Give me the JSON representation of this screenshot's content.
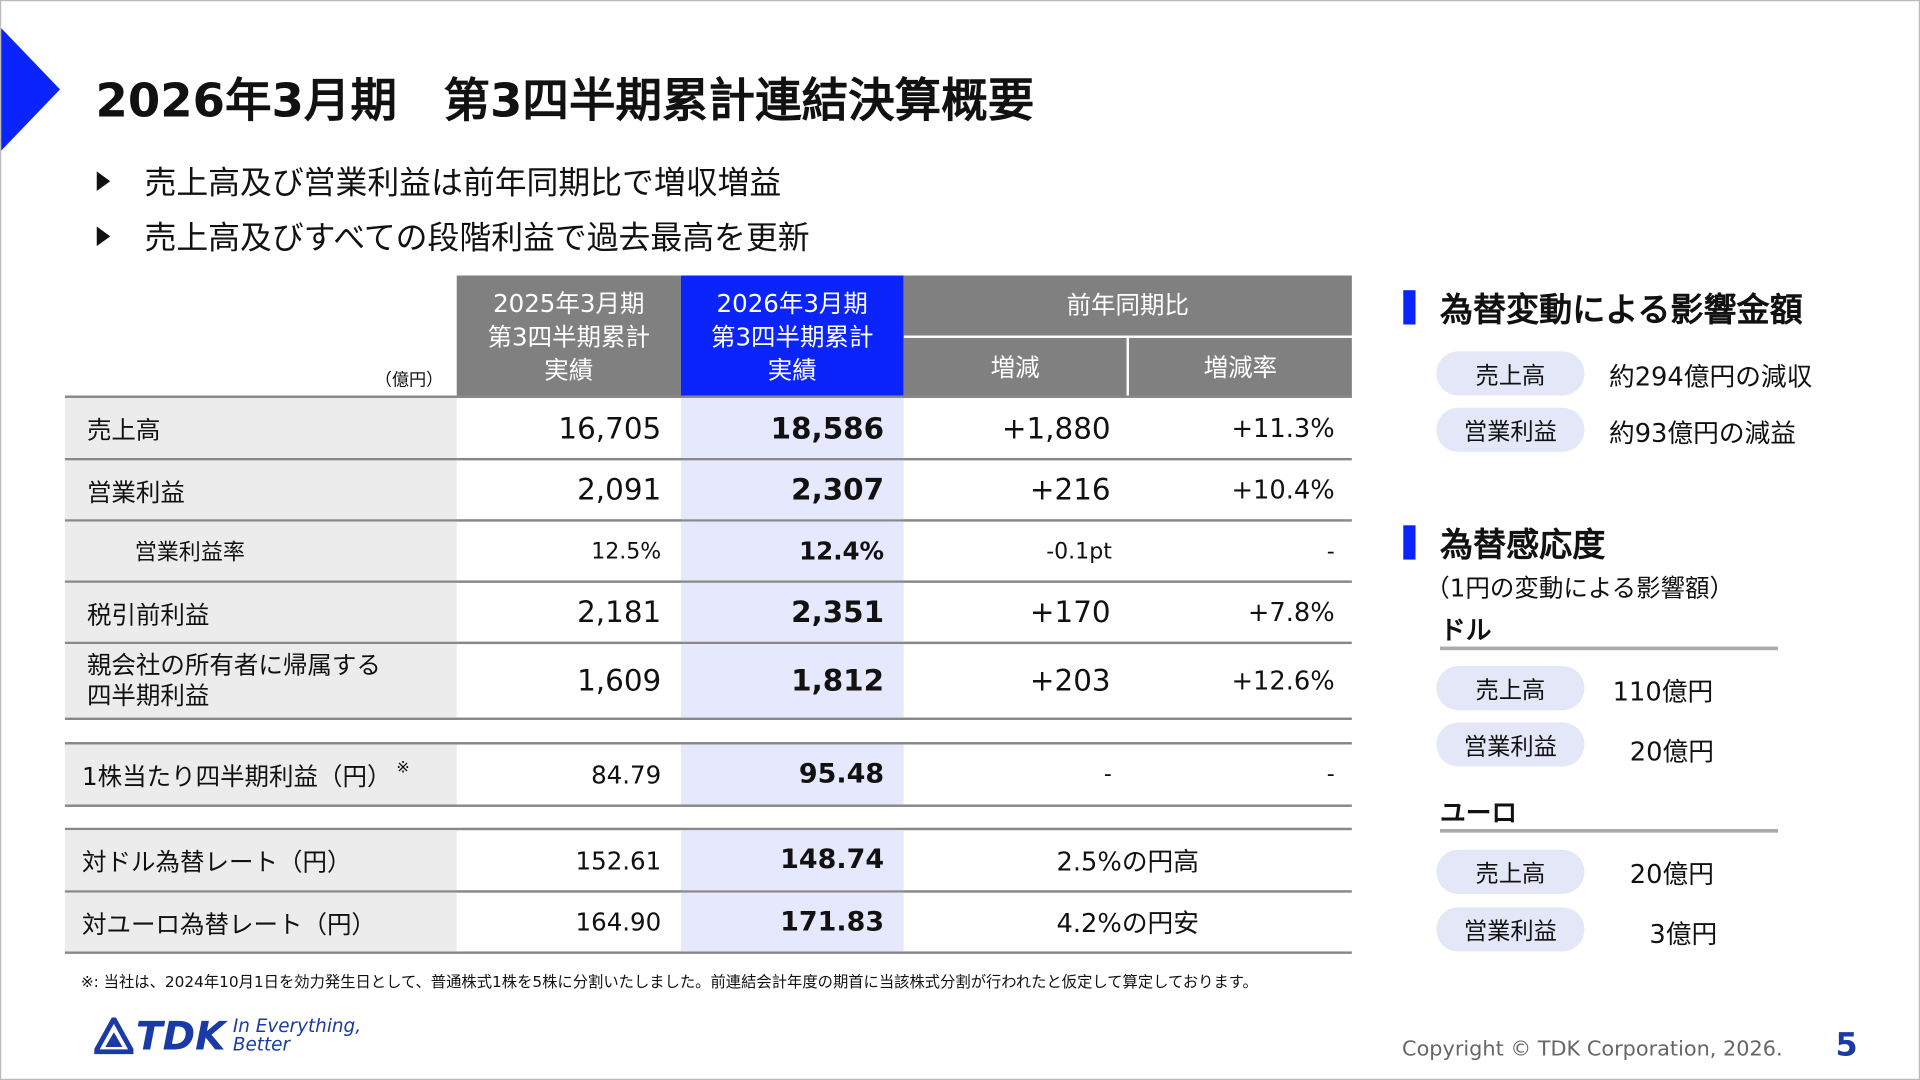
{
  "title": "2026年3月期　第3四半期累計連結決算概要",
  "bullets": [
    "売上高及び営業利益は前年同期比で増収増益",
    "売上高及びすべての段階利益で過去最高を更新"
  ],
  "table": {
    "unit": "（億円）",
    "headers": {
      "prev": "2025年3月期\n第3四半期累計\n実績",
      "curr": "2026年3月期\n第3四半期累計\n実績",
      "yoy": "前年同期比",
      "change": "増減",
      "rate": "増減率"
    },
    "rows": [
      {
        "label": "売上高",
        "prev": "16,705",
        "curr": "18,586",
        "change": "+1,880",
        "rate": "+11.3%"
      },
      {
        "label": "営業利益",
        "prev": "2,091",
        "curr": "2,307",
        "change": "+216",
        "rate": "+10.4%"
      },
      {
        "label": "営業利益率",
        "prev": "12.5%",
        "curr": "12.4%",
        "change": "-0.1pt",
        "rate": "-"
      },
      {
        "label": "税引前利益",
        "prev": "2,181",
        "curr": "2,351",
        "change": "+170",
        "rate": "+7.8%"
      },
      {
        "label": "親会社の所有者に帰属する\n四半期利益",
        "prev": "1,609",
        "curr": "1,812",
        "change": "+203",
        "rate": "+12.6%"
      },
      {
        "label": "1株当たり四半期利益（円）",
        "note": "※",
        "prev": "84.79",
        "curr": "95.48",
        "change": "-",
        "rate": "-"
      },
      {
        "label": "対ドル為替レート（円）",
        "prev": "152.61",
        "curr": "148.74",
        "comparison": "2.5%の円高"
      },
      {
        "label": "対ユーロ為替レート（円）",
        "prev": "164.90",
        "curr": "171.83",
        "comparison": "4.2%の円安"
      }
    ]
  },
  "fx_impact": {
    "heading": "為替変動による影響金額",
    "items": [
      {
        "label": "売上高",
        "value": "約294億円の減収"
      },
      {
        "label": "営業利益",
        "value": "約93億円の減益"
      }
    ]
  },
  "fx_sensitivity": {
    "heading": "為替感応度",
    "subheading": "（1円の変動による影響額）",
    "usd": {
      "label": "ドル",
      "items": [
        {
          "label": "売上高",
          "value": "110億円"
        },
        {
          "label": "営業利益",
          "value": "20億円"
        }
      ]
    },
    "eur": {
      "label": "ユーロ",
      "items": [
        {
          "label": "売上高",
          "value": "20億円"
        },
        {
          "label": "営業利益",
          "value": "3億円"
        }
      ]
    }
  },
  "footnote": "※: 当社は、2024年10月1日を効力発生日として、普通株式1株を5株に分割いたしました。前連結会計年度の期首に当該株式分割が行われたと仮定して算定しております。",
  "logo": {
    "brand": "TDK",
    "tagline": "In Everything, Better"
  },
  "copyright": "Copyright  © TDK Corporation, 2026.",
  "page_number": "5",
  "colors": {
    "accent": "#0b24fb",
    "header_gray": "#808080",
    "highlight": "#e6e8fd"
  }
}
